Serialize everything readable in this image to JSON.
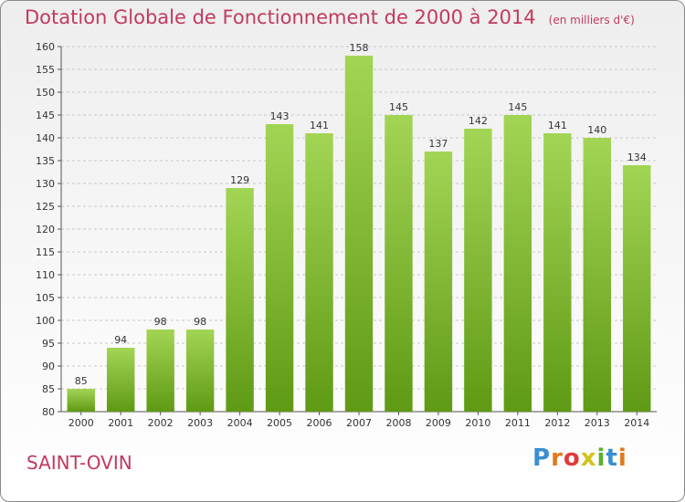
{
  "header": {
    "title": "Dotation Globale de Fonctionnement de 2000 à 2014",
    "unit": "(en milliers d'€)"
  },
  "footer": {
    "commune": "SAINT-OVIN",
    "logo_text": "Proxiti",
    "logo_colors": [
      "#3a8fd0",
      "#e07a1c",
      "#e03a3a",
      "#d1c41a",
      "#5ab02e",
      "#3a8fd0",
      "#e07a1c"
    ]
  },
  "colors": {
    "bar_light": "#a3d555",
    "bar_dark": "#5f9a14",
    "grid": "#c8c8c8",
    "axis": "#555555",
    "text": "#333333"
  },
  "chart_data": {
    "type": "bar",
    "categories": [
      "2000",
      "2001",
      "2002",
      "2003",
      "2004",
      "2005",
      "2006",
      "2007",
      "2008",
      "2009",
      "2010",
      "2011",
      "2012",
      "2013",
      "2014"
    ],
    "values": [
      85,
      94,
      98,
      98,
      129,
      143,
      141,
      158,
      145,
      137,
      142,
      145,
      141,
      140,
      134
    ],
    "title": "Dotation Globale de Fonctionnement de 2000 à 2014",
    "xlabel": "",
    "ylabel": "",
    "ylim": [
      80,
      160
    ],
    "ytick_step": 5,
    "grid": true,
    "data_labels": true
  }
}
